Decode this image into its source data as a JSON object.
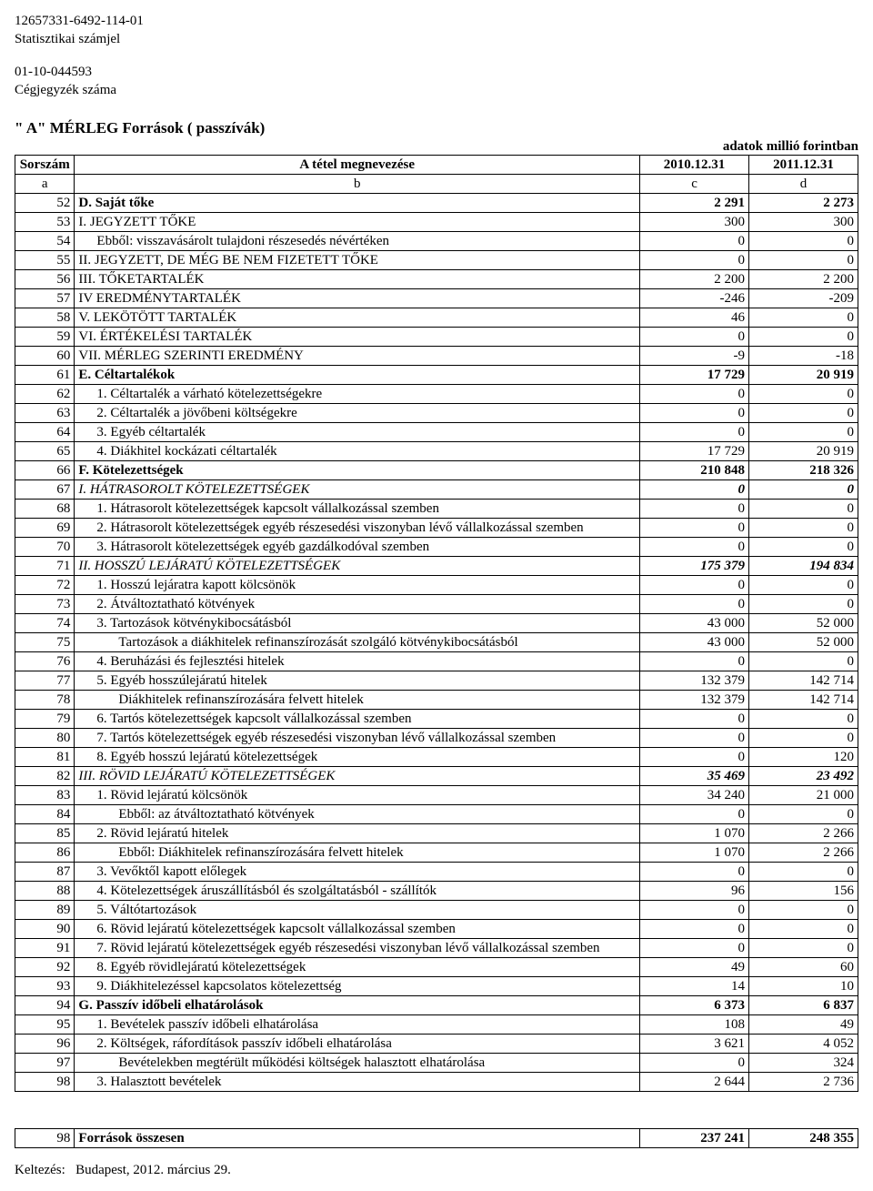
{
  "header": {
    "stat_id": "12657331-6492-114-01",
    "stat_label": "Statisztikai számjel",
    "reg_id": "01-10-044593",
    "reg_label": "Cégjegyzék száma"
  },
  "title": "\" A\" MÉRLEG Források ( passzívák)",
  "unit": "adatok millió forintban",
  "columns": {
    "c1": "Sorszám",
    "c2": "A tétel megnevezése",
    "c3": "2010.12.31",
    "c4": "2011.12.31",
    "s1": "a",
    "s2": "b",
    "s3": "c",
    "s4": "d"
  },
  "rows": [
    {
      "i": "52",
      "l": "D. Saját tőke",
      "v1": "2 291",
      "v2": "2 273",
      "b": true
    },
    {
      "i": "53",
      "l": "I. JEGYZETT TŐKE",
      "v1": "300",
      "v2": "300"
    },
    {
      "i": "54",
      "l": "Ebből: visszavásárolt tulajdoni részesedés névértéken",
      "v1": "0",
      "v2": "0",
      "ind": 1
    },
    {
      "i": "55",
      "l": "II. JEGYZETT, DE MÉG BE NEM FIZETETT TŐKE",
      "v1": "0",
      "v2": "0"
    },
    {
      "i": "56",
      "l": "III. TŐKETARTALÉK",
      "v1": "2 200",
      "v2": "2 200"
    },
    {
      "i": "57",
      "l": "IV  EREDMÉNYTARTALÉK",
      "v1": "-246",
      "v2": "-209"
    },
    {
      "i": "58",
      "l": "V. LEKÖTÖTT TARTALÉK",
      "v1": "46",
      "v2": "0"
    },
    {
      "i": "59",
      "l": "VI. ÉRTÉKELÉSI TARTALÉK",
      "v1": "0",
      "v2": "0"
    },
    {
      "i": "60",
      "l": "VII. MÉRLEG SZERINTI EREDMÉNY",
      "v1": "-9",
      "v2": "-18"
    },
    {
      "i": "61",
      "l": "E. Céltartalékok",
      "v1": "17 729",
      "v2": "20 919",
      "b": true
    },
    {
      "i": "62",
      "l": "1. Céltartalék a várható kötelezettségekre",
      "v1": "0",
      "v2": "0",
      "ind": 1
    },
    {
      "i": "63",
      "l": "2. Céltartalék a jövőbeni költségekre",
      "v1": "0",
      "v2": "0",
      "ind": 1
    },
    {
      "i": "64",
      "l": "3. Egyéb céltartalék",
      "v1": "0",
      "v2": "0",
      "ind": 1
    },
    {
      "i": "65",
      "l": "4. Diákhitel kockázati céltartalék",
      "v1": "17 729",
      "v2": "20 919",
      "ind": 1
    },
    {
      "i": "66",
      "l": "F. Kötelezettségek",
      "v1": "210 848",
      "v2": "218 326",
      "b": true
    },
    {
      "i": "67",
      "l": "I. HÁTRASOROLT KÖTELEZETTSÉGEK",
      "v1": "0",
      "v2": "0",
      "it": true,
      "bv": true
    },
    {
      "i": "68",
      "l": "1. Hátrasorolt kötelezettségek kapcsolt vállalkozással szemben",
      "v1": "0",
      "v2": "0",
      "ind": 1
    },
    {
      "i": "69",
      "l": "2. Hátrasorolt kötelezettségek egyéb részesedési viszonyban lévő vállalkozással szemben",
      "v1": "0",
      "v2": "0",
      "ind": 1
    },
    {
      "i": "70",
      "l": "3. Hátrasorolt kötelezettségek egyéb gazdálkodóval szemben",
      "v1": "0",
      "v2": "0",
      "ind": 1
    },
    {
      "i": "71",
      "l": "II. HOSSZÚ LEJÁRATÚ KÖTELEZETTSÉGEK",
      "v1": "175 379",
      "v2": "194 834",
      "it": true,
      "bv": true
    },
    {
      "i": "72",
      "l": "1. Hosszú lejáratra kapott kölcsönök",
      "v1": "0",
      "v2": "0",
      "ind": 1
    },
    {
      "i": "73",
      "l": "2. Átváltoztatható kötvények",
      "v1": "0",
      "v2": "0",
      "ind": 1
    },
    {
      "i": "74",
      "l": "3. Tartozások kötvénykibocsátásból",
      "v1": "43 000",
      "v2": "52 000",
      "ind": 1
    },
    {
      "i": "75",
      "l": "Tartozások a diákhitelek refinanszírozását szolgáló kötvénykibocsátásból",
      "v1": "43 000",
      "v2": "52 000",
      "ind": 2
    },
    {
      "i": "76",
      "l": "4. Beruházási és fejlesztési hitelek",
      "v1": "0",
      "v2": "0",
      "ind": 1
    },
    {
      "i": "77",
      "l": "5. Egyéb hosszúlejáratú hitelek",
      "v1": "132 379",
      "v2": "142 714",
      "ind": 1
    },
    {
      "i": "78",
      "l": "Diákhitelek refinanszírozására felvett hitelek",
      "v1": "132 379",
      "v2": "142 714",
      "ind": 2
    },
    {
      "i": "79",
      "l": "6. Tartós kötelezettségek kapcsolt vállalkozással szemben",
      "v1": "0",
      "v2": "0",
      "ind": 1
    },
    {
      "i": "80",
      "l": "7. Tartós kötelezettségek egyéb részesedési  viszonyban lévő vállalkozással szemben",
      "v1": "0",
      "v2": "0",
      "ind": 1
    },
    {
      "i": "81",
      "l": "8. Egyéb hosszú lejáratú kötelezettségek",
      "v1": "0",
      "v2": "120",
      "ind": 1
    },
    {
      "i": "82",
      "l": "III. RÖVID LEJÁRATÚ KÖTELEZETTSÉGEK",
      "v1": "35 469",
      "v2": "23 492",
      "it": true,
      "bv": true
    },
    {
      "i": "83",
      "l": "1. Rövid lejáratú kölcsönök",
      "v1": "34 240",
      "v2": "21 000",
      "ind": 1
    },
    {
      "i": "84",
      "l": "Ebből: az átváltoztatható kötvények",
      "v1": "0",
      "v2": "0",
      "ind": 2
    },
    {
      "i": "85",
      "l": "2. Rövid lejáratú hitelek",
      "v1": "1 070",
      "v2": "2 266",
      "ind": 1
    },
    {
      "i": "86",
      "l": "Ebből: Diákhitelek refinanszírozására felvett hitelek",
      "v1": "1 070",
      "v2": "2 266",
      "ind": 2
    },
    {
      "i": "87",
      "l": "3. Vevőktől kapott előlegek",
      "v1": "0",
      "v2": "0",
      "ind": 1
    },
    {
      "i": "88",
      "l": "4. Kötelezettségek áruszállításból és szolgáltatásból  - szállítók",
      "v1": "96",
      "v2": "156",
      "ind": 1
    },
    {
      "i": "89",
      "l": "5. Váltótartozások",
      "v1": "0",
      "v2": "0",
      "ind": 1
    },
    {
      "i": "90",
      "l": "6. Rövid lejáratú kötelezettségek kapcsolt vállalkozással szemben",
      "v1": "0",
      "v2": "0",
      "ind": 1
    },
    {
      "i": "91",
      "l": "7. Rövid lejáratú kötelezettségek egyéb részesedési viszonyban lévő vállalkozással szemben",
      "v1": "0",
      "v2": "0",
      "ind": 1
    },
    {
      "i": "92",
      "l": "8. Egyéb rövidlejáratú kötelezettségek",
      "v1": "49",
      "v2": "60",
      "ind": 1
    },
    {
      "i": "93",
      "l": "9. Diákhitelezéssel kapcsolatos kötelezettség",
      "v1": "14",
      "v2": "10",
      "ind": 1
    },
    {
      "i": "94",
      "l": "G. Passzív időbeli elhatárolások",
      "v1": "6 373",
      "v2": "6 837",
      "b": true
    },
    {
      "i": "95",
      "l": "1. Bevételek passzív időbeli elhatárolása",
      "v1": "108",
      "v2": "49",
      "ind": 1
    },
    {
      "i": "96",
      "l": "2. Költségek, ráfordítások passzív időbeli elhatárolása",
      "v1": "3 621",
      "v2": "4 052",
      "ind": 1
    },
    {
      "i": "97",
      "l": "Bevételekben megtérült működési költségek halasztott elhatárolása",
      "v1": "0",
      "v2": "324",
      "ind": 2
    },
    {
      "i": "98",
      "l": "3. Halasztott bevételek",
      "v1": "2 644",
      "v2": "2 736",
      "ind": 1
    }
  ],
  "total": {
    "i": "98",
    "l": "Források összesen",
    "v1": "237 241",
    "v2": "248 355"
  },
  "date_label": "Keltezés:",
  "date_value": "Budapest, 2012. március 29."
}
